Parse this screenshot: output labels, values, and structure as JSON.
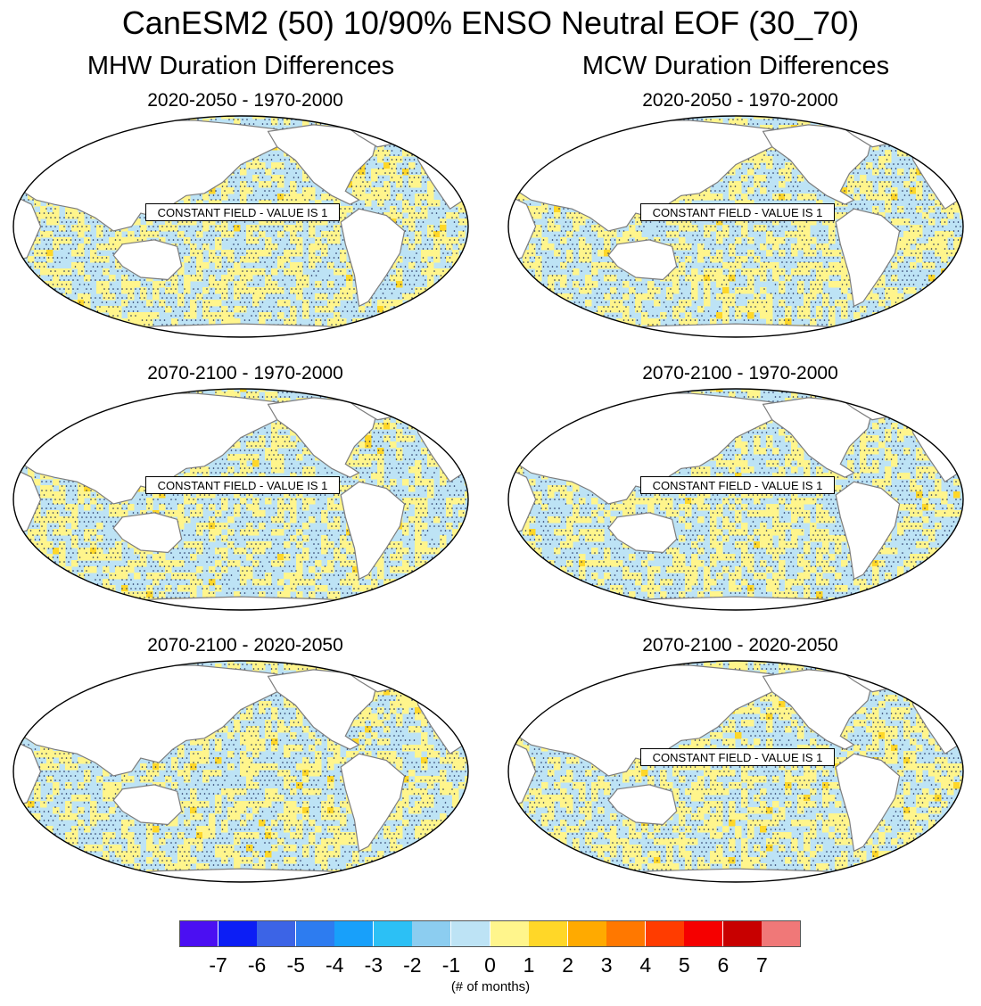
{
  "title": "CanESM2 (50) 10/90% ENSO Neutral EOF (30_70)",
  "columns": [
    {
      "title": "MHW Duration Differences"
    },
    {
      "title": "MCW Duration Differences"
    }
  ],
  "panels": [
    {
      "id": "mhw-1",
      "title": "2020-2050 - 1970-2000",
      "note": "CONSTANT FIELD - VALUE IS 1",
      "show_note": true
    },
    {
      "id": "mcw-1",
      "title": "2020-2050 - 1970-2000",
      "note": "CONSTANT FIELD - VALUE IS 1",
      "show_note": true
    },
    {
      "id": "mhw-2",
      "title": "2070-2100 - 1970-2000",
      "note": "CONSTANT FIELD - VALUE IS 1",
      "show_note": true
    },
    {
      "id": "mcw-2",
      "title": "2070-2100 - 1970-2000",
      "note": "CONSTANT FIELD - VALUE IS 1",
      "show_note": true
    },
    {
      "id": "mhw-3",
      "title": "2070-2100 - 2020-2050",
      "note": "",
      "show_note": false
    },
    {
      "id": "mcw-3",
      "title": "2070-2100 - 2020-2050",
      "note": "CONSTANT FIELD - VALUE IS 1",
      "show_note": true
    }
  ],
  "colorbar": {
    "colors": [
      "#4b0ff2",
      "#0c1ef5",
      "#3c64e6",
      "#2d7cf0",
      "#18a0fa",
      "#2cc0f5",
      "#8ccdf0",
      "#bde3f5",
      "#fff58c",
      "#ffd728",
      "#ffaa00",
      "#ff7800",
      "#ff3c00",
      "#f50000",
      "#c80000",
      "#f07878"
    ],
    "ticks": [
      "-7",
      "-6",
      "-5",
      "-4",
      "-3",
      "-2",
      "-1",
      "0",
      "1",
      "2",
      "3",
      "4",
      "5",
      "6",
      "7"
    ],
    "units": "(# of months)"
  },
  "map_colors": {
    "land": "#ffffff",
    "coast": "#7d7d7d",
    "ocean_warm": "#fff58c",
    "ocean_cool": "#bde3f5",
    "ocean_orange": "#ffd728",
    "stipple": "#1a2a5a"
  }
}
